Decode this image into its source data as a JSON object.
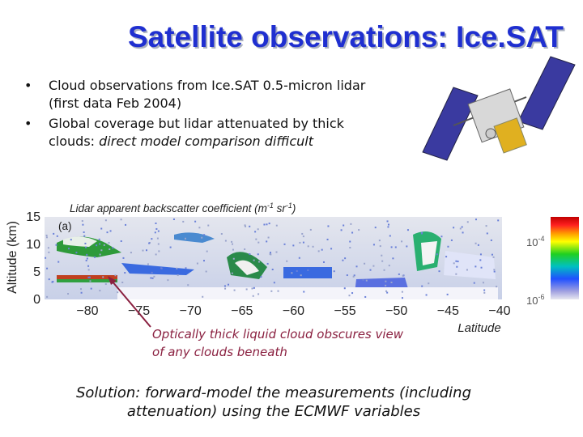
{
  "header": {
    "title": "Satellite observations: Ice.SAT"
  },
  "bullets": [
    {
      "lines": [
        "Cloud observations from Ice.SAT 0.5-micron lidar",
        "(first data Feb 2004)"
      ]
    },
    {
      "lines": [
        "Global coverage but lidar attenuated by thick"
      ],
      "last_line": "clouds: ",
      "last_line_italic": "direct model comparison difficult"
    }
  ],
  "figure": {
    "caption_parts": [
      "Lidar apparent backscatter coefficient (m",
      "-1",
      " sr",
      "-1",
      ")"
    ],
    "panel_label": "(a)",
    "y_label": "Altitude (km)",
    "y_ticks": [
      "15",
      "10",
      "5",
      "0"
    ],
    "x_ticks": [
      "−80",
      "−75",
      "−70",
      "−65",
      "−60",
      "−55",
      "−50",
      "−45",
      "−40"
    ],
    "x_label": "Latitude",
    "colorbar_labels": [
      {
        "base": "10",
        "exponent": "-4"
      },
      {
        "base": "10",
        "exponent": "-6"
      }
    ]
  },
  "annotation": {
    "lines": [
      "Optically thick liquid cloud obscures view",
      "of any clouds beneath"
    ]
  },
  "solution": {
    "lines": [
      "Solution: forward-model the measurements (including",
      "attenuation) using the ECMWF variables"
    ]
  }
}
